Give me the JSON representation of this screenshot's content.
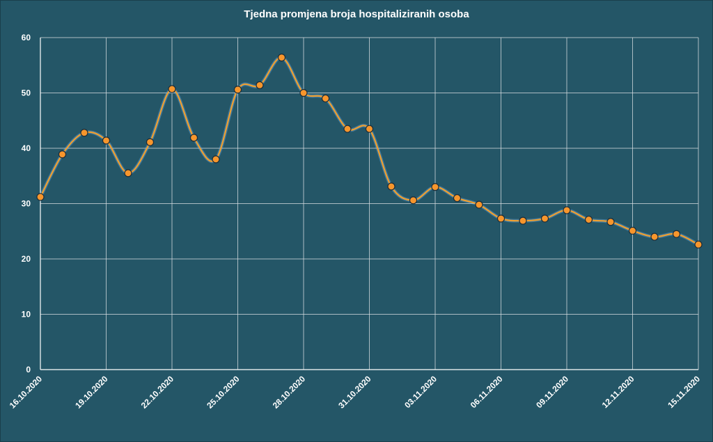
{
  "chart_data": {
    "type": "line",
    "title": "Tjedna promjena broja hospitaliziranih osoba",
    "xlabel": "",
    "ylabel": "",
    "ylim": [
      0,
      60
    ],
    "yticks": [
      "0",
      "10",
      "20",
      "30",
      "40",
      "50",
      "60"
    ],
    "xtick_labels": [
      "16.10.2020",
      "19.10.2020",
      "22.10.2020",
      "25.10.2020",
      "28.10.2020",
      "31.10.2020",
      "03.11.2020",
      "06.11.2020",
      "09.11.2020",
      "12.11.2020",
      "15.11.2020"
    ],
    "grid": true,
    "legend": "none",
    "x": [
      "16.10.2020",
      "17.10.2020",
      "18.10.2020",
      "19.10.2020",
      "20.10.2020",
      "21.10.2020",
      "22.10.2020",
      "23.10.2020",
      "24.10.2020",
      "25.10.2020",
      "26.10.2020",
      "27.10.2020",
      "28.10.2020",
      "29.10.2020",
      "30.10.2020",
      "31.10.2020",
      "01.11.2020",
      "02.11.2020",
      "03.11.2020",
      "04.11.2020",
      "05.11.2020",
      "06.11.2020",
      "07.11.2020",
      "08.11.2020",
      "09.11.2020",
      "10.11.2020",
      "11.11.2020",
      "12.11.2020",
      "13.11.2020",
      "14.11.2020",
      "15.11.2020"
    ],
    "series": [
      {
        "values": [
          31.2,
          38.9,
          42.8,
          41.4,
          35.5,
          41.1,
          50.7,
          41.9,
          38.0,
          50.6,
          51.4,
          56.4,
          50.0,
          49.0,
          43.5,
          43.5,
          33.1,
          30.6,
          33.0,
          31.0,
          29.8,
          27.3,
          26.9,
          27.3,
          28.8,
          27.1,
          26.7,
          25.1,
          24.0,
          24.5,
          22.6
        ]
      }
    ],
    "colors": {
      "line": "#f0a030",
      "marker": "#f7962c",
      "background": "#245667",
      "grid": "#d8dfe2"
    }
  }
}
